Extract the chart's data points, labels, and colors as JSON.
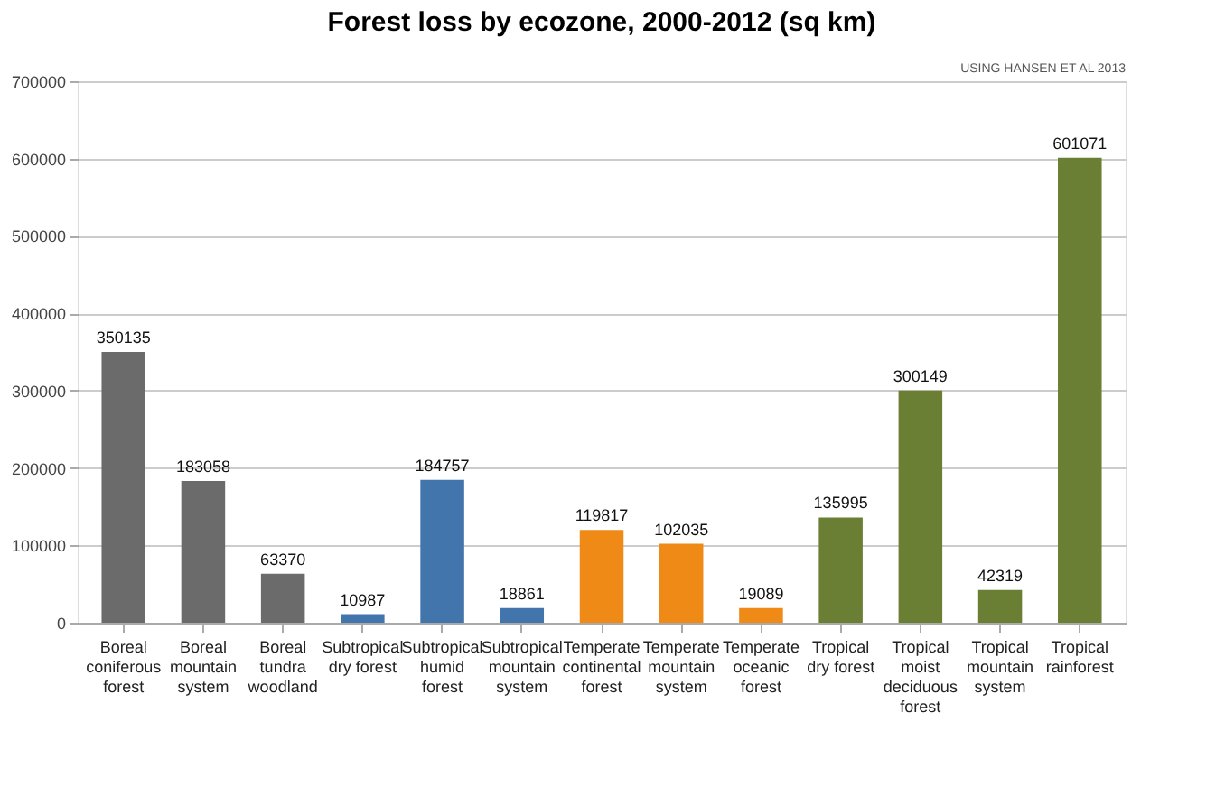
{
  "chart_data": {
    "type": "bar",
    "title": "Forest loss by ecozone, 2000-2012 (sq km)",
    "categories": [
      "Boreal coniferous forest",
      "Boreal mountain system",
      "Boreal tundra woodland",
      "Subtropical dry forest",
      "Subtropical humid forest",
      "Subtropical mountain system",
      "Temperate continental forest",
      "Temperate mountain system",
      "Temperate oceanic forest",
      "Tropical dry forest",
      "Tropical moist deciduous forest",
      "Tropical mountain system",
      "Tropical rainforest"
    ],
    "values": [
      350135,
      183058,
      63370,
      10987,
      184757,
      18861,
      119817,
      102035,
      19089,
      135995,
      300149,
      42319,
      601071
    ],
    "colors": [
      "#6b6b6b",
      "#6b6b6b",
      "#6b6b6b",
      "#4375ad",
      "#4375ad",
      "#4375ad",
      "#ef8a17",
      "#ef8a17",
      "#ef8a17",
      "#6b7f34",
      "#6b7f34",
      "#6b7f34",
      "#6b7f34"
    ],
    "ylim": [
      0,
      700000
    ],
    "yticks": [
      0,
      100000,
      200000,
      300000,
      400000,
      500000,
      600000,
      700000
    ],
    "grid": "y",
    "data_labels": true,
    "annotations": [
      "USING HANSEN ET AL 2013"
    ]
  }
}
